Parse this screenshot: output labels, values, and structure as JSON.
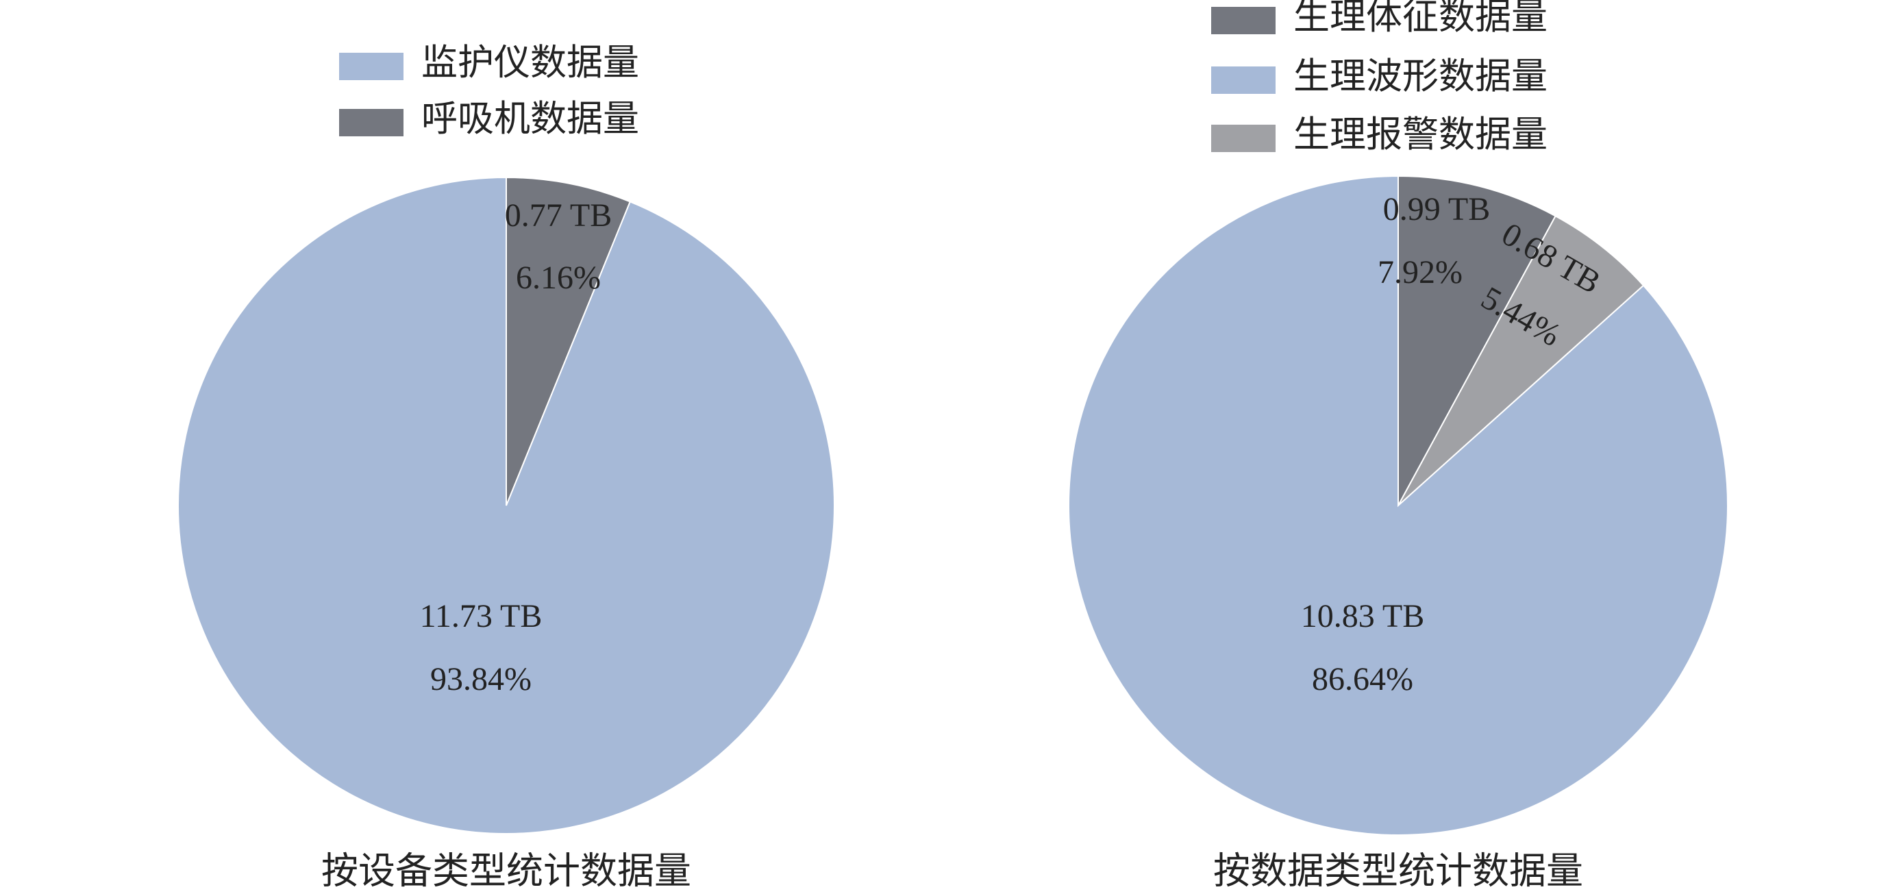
{
  "chart_data": [
    {
      "type": "pie",
      "title": "按设备类型统计数据量",
      "categories": [
        "监护仪数据量",
        "呼吸机数据量"
      ],
      "values": [
        11.73,
        0.77
      ],
      "value_labels": [
        "11.73 TB",
        "0.77 TB"
      ],
      "percents": [
        93.84,
        6.16
      ],
      "percent_labels": [
        "93.84%",
        "6.16%"
      ],
      "colors": [
        "#a6b9d7",
        "#74777f"
      ]
    },
    {
      "type": "pie",
      "title": "按数据类型统计数据量",
      "categories": [
        "生理体征数据量",
        "生理波形数据量",
        "生理报警数据量"
      ],
      "values": [
        0.99,
        10.83,
        0.68
      ],
      "value_labels": [
        "0.99 TB",
        "10.83 TB",
        "0.68 TB"
      ],
      "percents": [
        7.92,
        86.64,
        5.44
      ],
      "percent_labels": [
        "7.92%",
        "86.64%",
        "5.44%"
      ],
      "colors": [
        "#74777f",
        "#a6b9d7",
        "#a0a1a5"
      ]
    }
  ]
}
